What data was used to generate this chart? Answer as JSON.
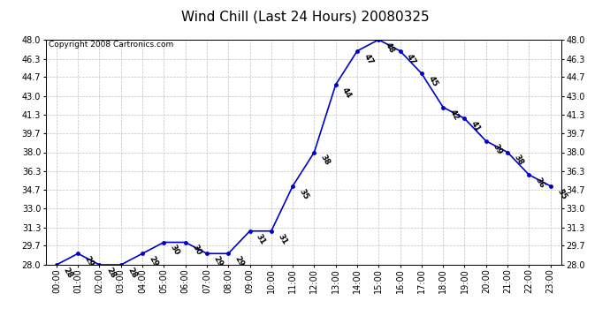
{
  "title": "Wind Chill (Last 24 Hours) 20080325",
  "copyright": "Copyright 2008 Cartronics.com",
  "hours": [
    0,
    1,
    2,
    3,
    4,
    5,
    6,
    7,
    8,
    9,
    10,
    11,
    12,
    13,
    14,
    15,
    16,
    17,
    18,
    19,
    20,
    21,
    22,
    23
  ],
  "values": [
    28,
    29,
    28,
    28,
    29,
    30,
    30,
    29,
    29,
    31,
    31,
    35,
    38,
    44,
    47,
    48,
    47,
    45,
    42,
    41,
    39,
    38,
    36,
    35
  ],
  "ylim": [
    28.0,
    48.0
  ],
  "yticks": [
    28.0,
    29.7,
    31.3,
    33.0,
    34.7,
    36.3,
    38.0,
    39.7,
    41.3,
    43.0,
    44.7,
    46.3,
    48.0
  ],
  "line_color": "#0000cc",
  "bg_color": "#ffffff",
  "grid_color": "#c0c0c0",
  "title_fontsize": 11,
  "tick_fontsize": 7,
  "copyright_fontsize": 6.5,
  "annotation_fontsize": 6.5,
  "annotation_rotation": -60
}
